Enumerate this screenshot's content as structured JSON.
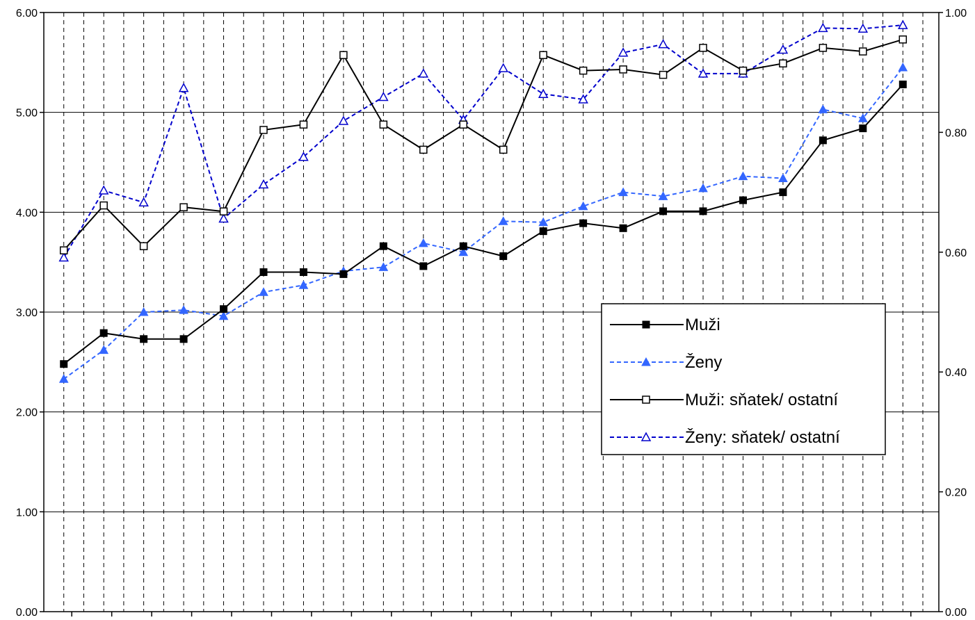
{
  "chart_data": {
    "type": "line",
    "title": "",
    "xlabel": "",
    "ylabel": "",
    "y_left": {
      "ylim": [
        0,
        6
      ],
      "ticks": [
        "0.00",
        "1.00",
        "2.00",
        "3.00",
        "4.00",
        "5.00",
        "6.00"
      ]
    },
    "y_right": {
      "ylim": [
        0,
        1
      ],
      "ticks": [
        "0.00",
        "0.20",
        "0.40",
        "0.60",
        "0.80",
        "1.00"
      ]
    },
    "x_categories": 22,
    "grid": {
      "horizontal": "solid",
      "vertical": "dashed"
    },
    "legend": {
      "position": "middle-right",
      "entries": [
        "Muži",
        "Ženy",
        "Muži: sňatek/ ostatní",
        "Ženy: sňatek/ ostatní"
      ]
    },
    "series": [
      {
        "name": "Muži",
        "axis": "left",
        "color": "#000000",
        "line": "solid",
        "marker": "filled-square",
        "values": [
          2.48,
          2.79,
          2.73,
          2.73,
          3.03,
          3.4,
          3.4,
          3.38,
          3.66,
          3.46,
          3.66,
          3.56,
          3.81,
          3.89,
          3.84,
          4.01,
          4.01,
          4.12,
          4.2,
          4.72,
          4.84,
          5.28
        ]
      },
      {
        "name": "Ženy",
        "axis": "left",
        "color": "#3366ff",
        "line": "dashed",
        "marker": "filled-triangle",
        "values": [
          2.33,
          2.62,
          3.0,
          3.02,
          2.96,
          3.2,
          3.27,
          3.41,
          3.45,
          3.69,
          3.6,
          3.91,
          3.9,
          4.06,
          4.2,
          4.16,
          4.24,
          4.36,
          4.34,
          5.03,
          4.94,
          5.45
        ]
      },
      {
        "name": "Muži: sňatek/ ostatní",
        "axis": "right",
        "color": "#000000",
        "line": "solid",
        "marker": "hollow-square",
        "values": [
          0.603,
          0.678,
          0.61,
          0.675,
          0.668,
          0.804,
          0.813,
          0.929,
          0.813,
          0.771,
          0.813,
          0.771,
          0.929,
          0.903,
          0.905,
          0.896,
          0.941,
          0.903,
          0.915,
          0.941,
          0.935,
          0.955
        ]
      },
      {
        "name": "Ženy: sňatek/ ostatní",
        "axis": "right",
        "color": "#0000cc",
        "line": "dashed",
        "marker": "hollow-triangle",
        "values": [
          0.591,
          0.703,
          0.683,
          0.874,
          0.656,
          0.713,
          0.759,
          0.819,
          0.859,
          0.898,
          0.821,
          0.907,
          0.864,
          0.855,
          0.933,
          0.947,
          0.898,
          0.898,
          0.938,
          0.974,
          0.973,
          0.979
        ]
      }
    ]
  }
}
